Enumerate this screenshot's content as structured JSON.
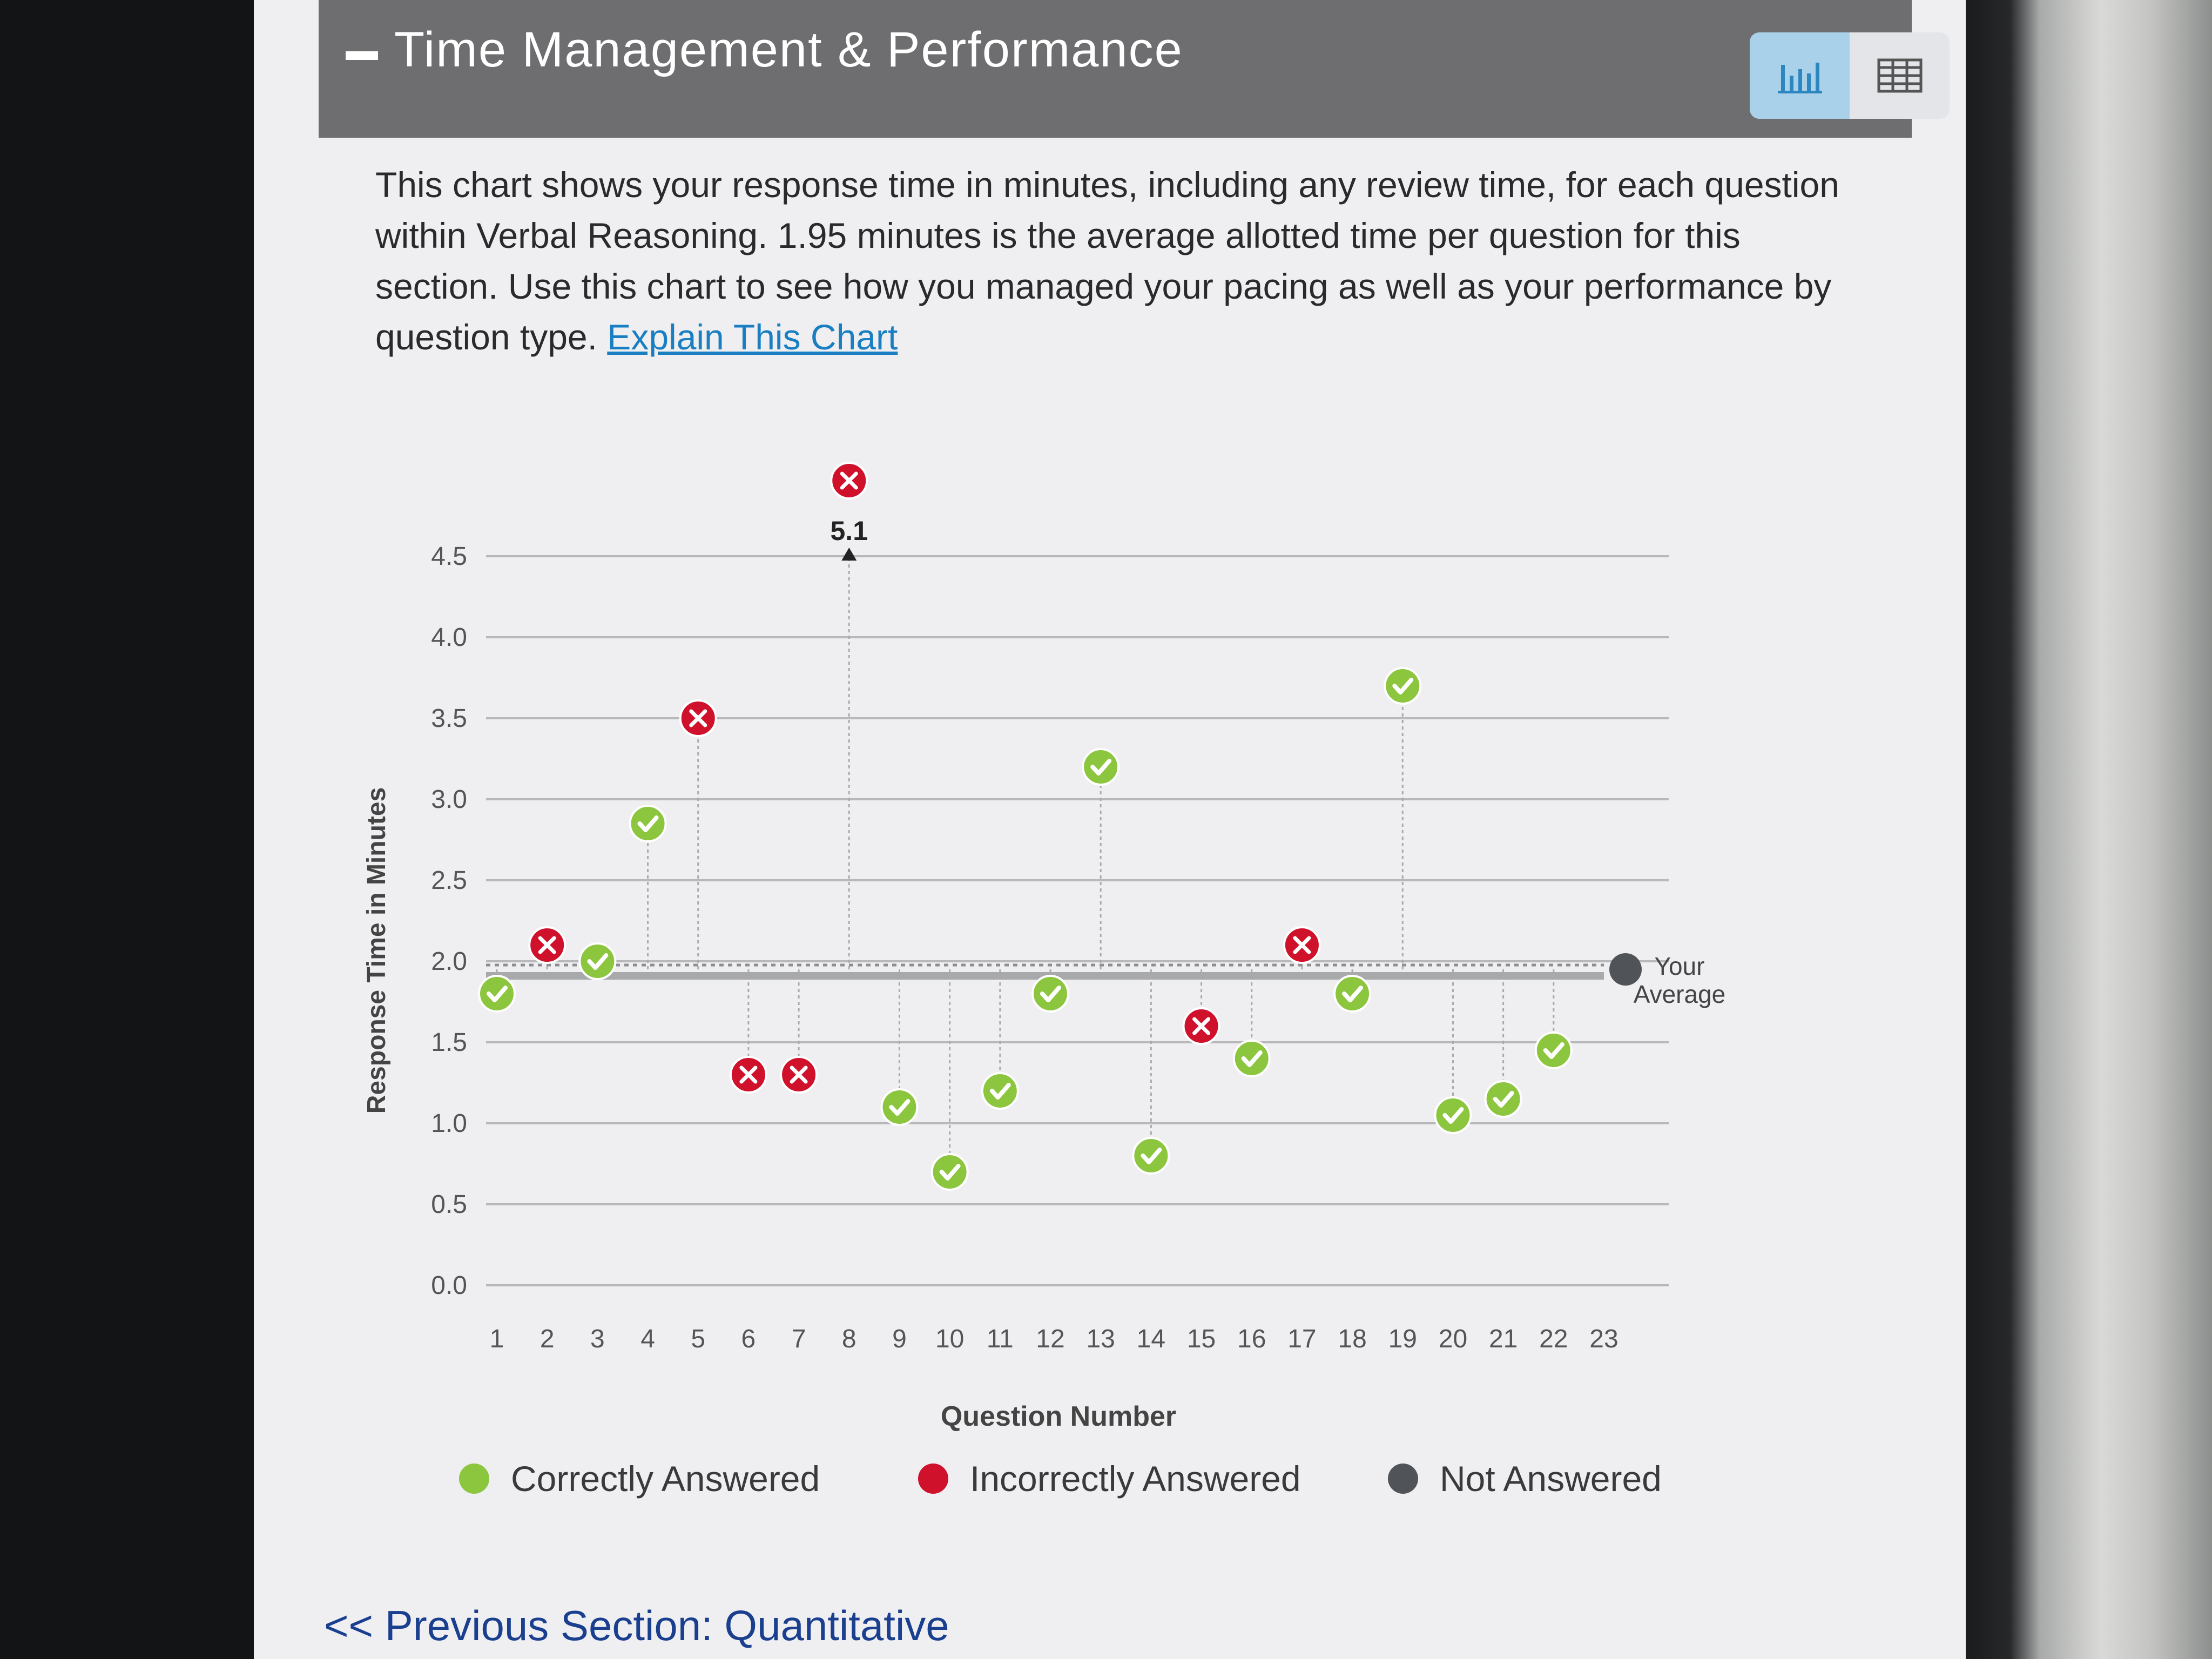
{
  "panel": {
    "collapse_symbol": "−",
    "title": "Time Management & Performance",
    "view_toggle": {
      "chart_icon": "bar-chart-icon",
      "table_icon": "table-grid-icon",
      "active": "chart"
    }
  },
  "description": {
    "text": "This chart shows your response time in minutes, including any review time, for each question within Verbal Reasoning. 1.95 minutes is the average allotted time per question for this section. Use this chart to see how you managed your pacing as well as your performance by question type.",
    "link_label": "Explain This Chart"
  },
  "chart_data": {
    "type": "scatter",
    "xlabel": "Question Number",
    "ylabel": "Response Time in Minutes",
    "ylim": [
      0,
      4.5
    ],
    "y_ticks": [
      "0.0",
      "0.5",
      "1.0",
      "1.5",
      "2.0",
      "2.5",
      "3.0",
      "3.5",
      "4.0",
      "4.5"
    ],
    "x": [
      1,
      2,
      3,
      4,
      5,
      6,
      7,
      8,
      9,
      10,
      11,
      12,
      13,
      14,
      15,
      16,
      17,
      18,
      19,
      20,
      21,
      22,
      23
    ],
    "x_ticks": [
      "1",
      "2",
      "3",
      "4",
      "5",
      "6",
      "7",
      "8",
      "9",
      "10",
      "11",
      "12",
      "13",
      "14",
      "15",
      "16",
      "17",
      "18",
      "19",
      "20",
      "21",
      "22",
      "23"
    ],
    "points": [
      {
        "q": 1,
        "time": 1.8,
        "status": "correct"
      },
      {
        "q": 2,
        "time": 2.1,
        "status": "incorrect"
      },
      {
        "q": 3,
        "time": 2.0,
        "status": "correct"
      },
      {
        "q": 4,
        "time": 2.85,
        "status": "correct"
      },
      {
        "q": 5,
        "time": 3.5,
        "status": "incorrect"
      },
      {
        "q": 6,
        "time": 1.3,
        "status": "incorrect"
      },
      {
        "q": 7,
        "time": 1.3,
        "status": "incorrect"
      },
      {
        "q": 8,
        "time": 5.1,
        "status": "incorrect",
        "label": "5.1"
      },
      {
        "q": 9,
        "time": 1.1,
        "status": "correct"
      },
      {
        "q": 10,
        "time": 0.7,
        "status": "correct"
      },
      {
        "q": 11,
        "time": 1.2,
        "status": "correct"
      },
      {
        "q": 12,
        "time": 1.8,
        "status": "correct"
      },
      {
        "q": 13,
        "time": 3.2,
        "status": "correct"
      },
      {
        "q": 14,
        "time": 0.8,
        "status": "correct"
      },
      {
        "q": 15,
        "time": 1.6,
        "status": "incorrect"
      },
      {
        "q": 16,
        "time": 1.4,
        "status": "correct"
      },
      {
        "q": 17,
        "time": 2.1,
        "status": "incorrect"
      },
      {
        "q": 18,
        "time": 1.8,
        "status": "correct"
      },
      {
        "q": 19,
        "time": 3.7,
        "status": "correct"
      },
      {
        "q": 20,
        "time": 1.05,
        "status": "correct"
      },
      {
        "q": 21,
        "time": 1.15,
        "status": "correct"
      },
      {
        "q": 22,
        "time": 1.45,
        "status": "correct"
      },
      {
        "q": 23,
        "time": 1.95,
        "status": "not_answered"
      }
    ],
    "allotted_average": 1.95,
    "your_average": 1.95,
    "your_average_label_line1": "Your",
    "your_average_label_line2": "Average",
    "legend": [
      {
        "label": "Correctly Answered",
        "status": "correct"
      },
      {
        "label": "Incorrectly Answered",
        "status": "incorrect"
      },
      {
        "label": "Not Answered",
        "status": "not_answered"
      }
    ],
    "colors": {
      "correct": "#8cc63f",
      "incorrect": "#d0112b",
      "not_answered": "#505458",
      "grid": "#b8b8ba",
      "average": "#a7a9ab"
    }
  },
  "footer": {
    "prev_section": "<< Previous Section: Quantitative"
  }
}
